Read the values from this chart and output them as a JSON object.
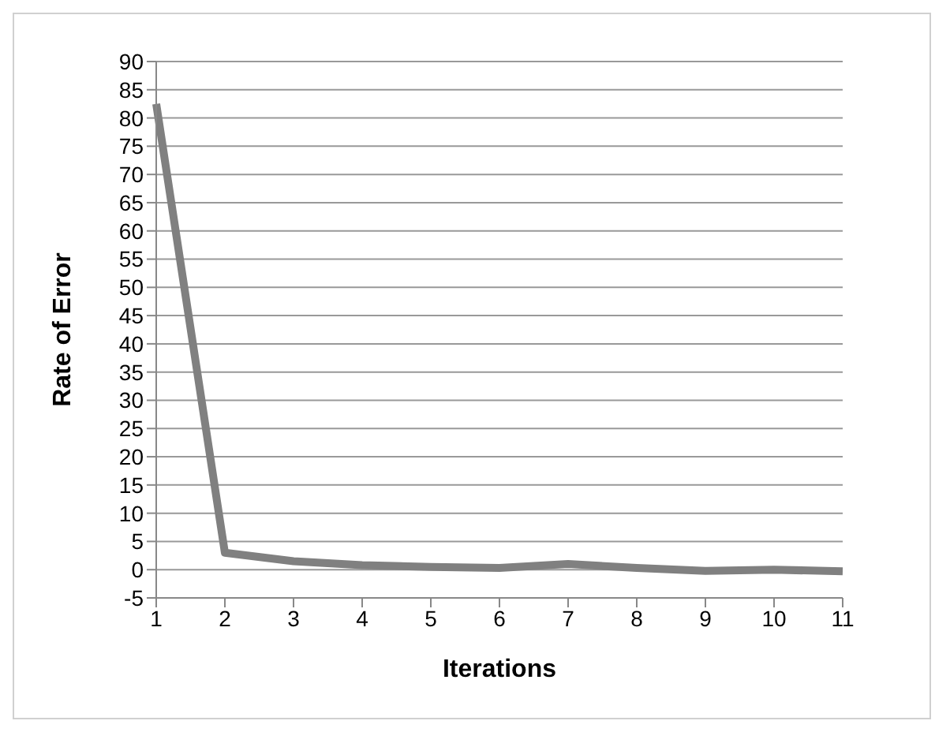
{
  "chart_data": {
    "type": "line",
    "xlabel": "Iterations",
    "ylabel": "Rate of Error",
    "categories": [
      "1",
      "2",
      "3",
      "4",
      "5",
      "6",
      "7",
      "8",
      "9",
      "10",
      "11"
    ],
    "series": [
      {
        "color": "#808080",
        "values": [
          82.5,
          3,
          1.5,
          0.8,
          0.5,
          0.3,
          1,
          0.3,
          -0.2,
          0,
          -0.3
        ]
      }
    ],
    "ylim": [
      -5,
      90
    ],
    "yticks": [
      -5,
      0,
      5,
      10,
      15,
      20,
      25,
      30,
      35,
      40,
      45,
      50,
      55,
      60,
      65,
      70,
      75,
      80,
      85,
      90
    ],
    "grid": "y",
    "marker": "none",
    "line_style": "solid",
    "legend": false
  }
}
